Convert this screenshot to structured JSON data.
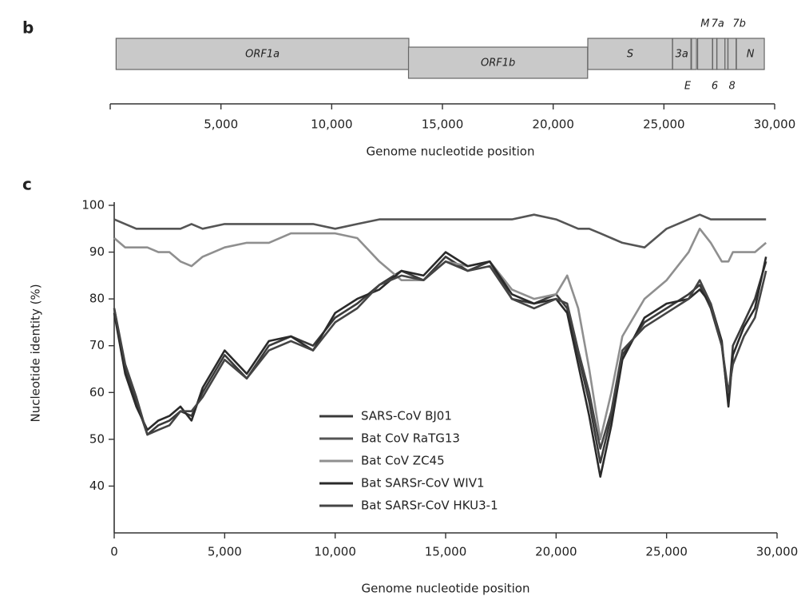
{
  "chart_data": [
    {
      "type": "genome-map",
      "panel": "b",
      "xlabel": "Genome nucleotide position",
      "xlim": [
        0,
        30000
      ],
      "xticks": [
        {
          "value": 5000,
          "label": "5,000"
        },
        {
          "value": 10000,
          "label": "10,000"
        },
        {
          "value": 15000,
          "label": "15,000"
        },
        {
          "value": 20000,
          "label": "20,000"
        },
        {
          "value": 25000,
          "label": "25,000"
        },
        {
          "value": 30000,
          "label": "30,000"
        }
      ],
      "color": "#c9c9c9",
      "genes": [
        {
          "name": "ORF1a",
          "start": 266,
          "end": 13483
        },
        {
          "name": "ORF1b",
          "start": 13468,
          "end": 21555
        },
        {
          "name": "S",
          "start": 21563,
          "end": 25384
        },
        {
          "name": "3a",
          "start": 25393,
          "end": 26220
        },
        {
          "name": "E",
          "start": 26245,
          "end": 26472
        },
        {
          "name": "M",
          "start": 26523,
          "end": 27191
        },
        {
          "name": "6",
          "start": 27202,
          "end": 27387
        },
        {
          "name": "7a",
          "start": 27394,
          "end": 27759
        },
        {
          "name": "7b",
          "start": 27756,
          "end": 27887
        },
        {
          "name": "8",
          "start": 27894,
          "end": 28259
        },
        {
          "name": "N",
          "start": 28274,
          "end": 29533
        }
      ]
    },
    {
      "type": "line",
      "panel": "c",
      "xlabel": "Genome nucleotide position",
      "ylabel": "Nucleotide identity (%)",
      "xlim": [
        0,
        30000
      ],
      "ylim": [
        30,
        100
      ],
      "xticks": [
        {
          "value": 0,
          "label": "0"
        },
        {
          "value": 5000,
          "label": "5,000"
        },
        {
          "value": 10000,
          "label": "10,000"
        },
        {
          "value": 15000,
          "label": "15,000"
        },
        {
          "value": 20000,
          "label": "20,000"
        },
        {
          "value": 25000,
          "label": "25,000"
        },
        {
          "value": 30000,
          "label": "30,000"
        }
      ],
      "yticks": [
        40,
        50,
        60,
        70,
        80,
        90,
        100
      ],
      "legend": "lower center",
      "x": [
        0,
        500,
        1000,
        1500,
        2000,
        2500,
        3000,
        3500,
        4000,
        5000,
        6000,
        7000,
        8000,
        9000,
        10000,
        11000,
        12000,
        13000,
        14000,
        15000,
        16000,
        17000,
        18000,
        19000,
        20000,
        20500,
        21000,
        21500,
        22000,
        22500,
        23000,
        24000,
        25000,
        26000,
        26500,
        27000,
        27500,
        27800,
        28000,
        28500,
        29000,
        29500
      ],
      "series": [
        {
          "name": "SARS-CoV BJ01",
          "color": "#3a3a3a",
          "values": [
            78,
            65,
            58,
            51,
            53,
            54,
            56,
            55,
            60,
            68,
            63,
            70,
            72,
            70,
            76,
            79,
            83,
            86,
            84,
            89,
            86,
            88,
            80,
            79,
            81,
            78,
            68,
            58,
            45,
            55,
            68,
            75,
            78,
            81,
            83,
            78,
            70,
            58,
            70,
            75,
            80,
            88
          ]
        },
        {
          "name": "Bat CoV RaTG13",
          "color": "#555555",
          "values": [
            97,
            96,
            95,
            95,
            95,
            95,
            95,
            96,
            95,
            96,
            96,
            96,
            96,
            96,
            95,
            96,
            97,
            97,
            97,
            97,
            97,
            97,
            97,
            98,
            97,
            96,
            95,
            95,
            94,
            93,
            92,
            91,
            95,
            97,
            98,
            97,
            97,
            97,
            97,
            97,
            97,
            97
          ]
        },
        {
          "name": "Bat CoV ZC45",
          "color": "#8f8f8f",
          "values": [
            93,
            91,
            91,
            91,
            90,
            90,
            88,
            87,
            89,
            91,
            92,
            92,
            94,
            94,
            94,
            93,
            88,
            84,
            84,
            88,
            87,
            88,
            82,
            80,
            81,
            85,
            78,
            65,
            50,
            60,
            72,
            80,
            84,
            90,
            95,
            92,
            88,
            88,
            90,
            90,
            90,
            92
          ]
        },
        {
          "name": "Bat SARSr-CoV WIV1",
          "color": "#2a2a2a",
          "values": [
            77,
            64,
            57,
            52,
            54,
            55,
            57,
            54,
            61,
            69,
            64,
            71,
            72,
            69,
            77,
            80,
            82,
            86,
            85,
            90,
            87,
            88,
            81,
            79,
            80,
            77,
            66,
            55,
            42,
            53,
            67,
            76,
            79,
            80,
            82,
            79,
            71,
            57,
            68,
            74,
            78,
            89
          ]
        },
        {
          "name": "Bat SARSr-CoV HKU3-1",
          "color": "#444444",
          "values": [
            78,
            66,
            59,
            51,
            52,
            53,
            56,
            56,
            59,
            67,
            63,
            69,
            71,
            69,
            75,
            78,
            83,
            85,
            84,
            88,
            86,
            87,
            80,
            78,
            80,
            79,
            69,
            60,
            48,
            56,
            69,
            74,
            77,
            80,
            84,
            79,
            70,
            60,
            66,
            72,
            76,
            86
          ]
        }
      ]
    }
  ]
}
